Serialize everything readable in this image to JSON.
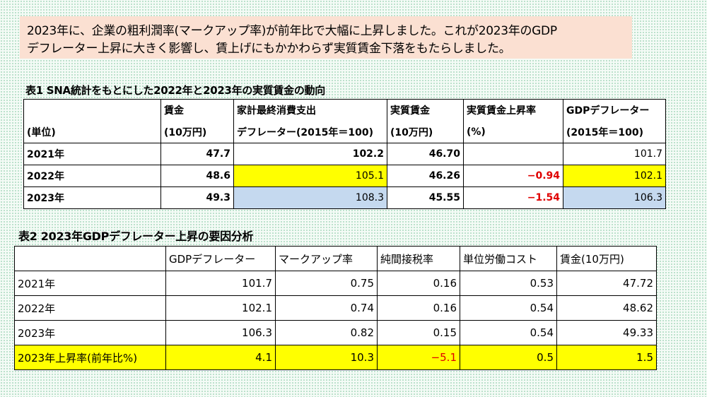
{
  "callout": {
    "line1": "2023年に、企業の粗利潤率(マークアップ率)が前年比で大幅に上昇しました。これが2023年のGDP",
    "line2": "デフレーター上昇に大きく影響し、賃上げにもかかわらず実質賃金下落をもたらしました。"
  },
  "table1": {
    "caption": "表1  SNA統計をもとにした2022年と2023年の実質賃金の動向",
    "header_row1": [
      "",
      "賃金",
      "家計最終消費支出",
      "実質賃金",
      "実質賃金上昇率",
      "GDPデフレーター"
    ],
    "header_row2": [
      "(単位)",
      "(10万円)",
      "デフレーター(2015年＝100)",
      "(10万円)",
      "(%)",
      "(2015年＝100)"
    ],
    "rows": [
      [
        "2021年",
        "47.7",
        "102.2",
        "46.70",
        "",
        "101.7"
      ],
      [
        "2022年",
        "48.6",
        "105.1",
        "46.26",
        "−0.94",
        "102.1"
      ],
      [
        "2023年",
        "49.3",
        "108.3",
        "45.55",
        "−1.54",
        "106.3"
      ]
    ],
    "highlight_yellow": "#ffff00",
    "highlight_blue": "#c5d9ef",
    "negative_color": "#e00000"
  },
  "table2": {
    "caption": "表2  2023年GDPデフレーター上昇の要因分析",
    "header": [
      "",
      "GDPデフレーター",
      "マークアップ率",
      "純間接税率",
      "単位労働コスト",
      "賃金(10万円)"
    ],
    "rows": [
      [
        "2021年",
        "101.7",
        "0.75",
        "0.16",
        "0.53",
        "47.72"
      ],
      [
        "2022年",
        "102.1",
        "0.74",
        "0.16",
        "0.54",
        "48.62"
      ],
      [
        "2023年",
        "106.3",
        "0.82",
        "0.15",
        "0.54",
        "49.33"
      ]
    ],
    "growth_row": [
      "2023年上昇率(前年比%)",
      "4.1",
      "10.3",
      "−5.1",
      "0.5",
      "1.5"
    ]
  }
}
